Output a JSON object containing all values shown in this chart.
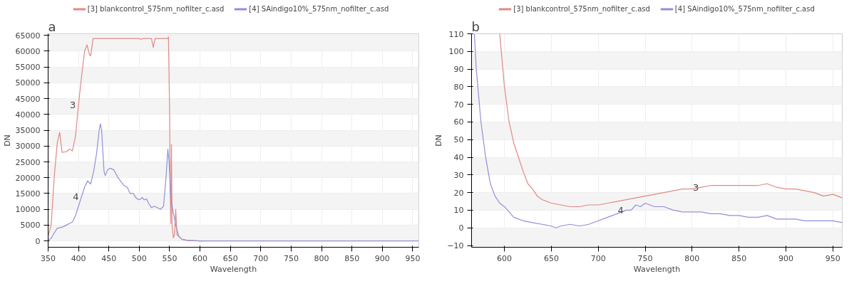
{
  "chart_data": [
    {
      "type": "line",
      "title": "a",
      "xlabel": "Wavelength",
      "ylabel": "DN",
      "xlim": [
        350,
        960
      ],
      "ylim": [
        -2000,
        65500
      ],
      "xticks": [
        350,
        400,
        450,
        500,
        550,
        600,
        650,
        700,
        750,
        800,
        850,
        900,
        950
      ],
      "yticks": [
        0,
        5000,
        10000,
        15000,
        20000,
        25000,
        30000,
        35000,
        40000,
        45000,
        50000,
        55000,
        60000,
        65000
      ],
      "grid": true,
      "legend": "top",
      "line_style": "solid",
      "series": [
        {
          "name": "[3] blankcontrol_575nm_nofilter_c.asd",
          "color": "#e08a84",
          "x": [
            350,
            355,
            360,
            365,
            369,
            373,
            380,
            385,
            390,
            395,
            400,
            405,
            410,
            414,
            418,
            420,
            424,
            500,
            502,
            505,
            520,
            523,
            526,
            547,
            548,
            550,
            551,
            552,
            553,
            554,
            556,
            558,
            560,
            562,
            570,
            580,
            600,
            608
          ],
          "values": [
            1500,
            5000,
            20000,
            31000,
            34300,
            28000,
            28200,
            29000,
            28500,
            33000,
            43000,
            52000,
            60000,
            62000,
            59000,
            58500,
            64000,
            64000,
            63700,
            64000,
            64000,
            61200,
            64000,
            64000,
            64500,
            40000,
            15000,
            5500,
            30500,
            5000,
            1000,
            2000,
            10000,
            2000,
            500,
            200,
            0,
            0
          ]
        },
        {
          "name": "[4] SAindigo10%_575nm_nofilter_c.asd",
          "color": "#9090d8",
          "x": [
            350,
            355,
            360,
            365,
            370,
            375,
            380,
            385,
            390,
            395,
            400,
            405,
            410,
            415,
            420,
            425,
            430,
            434,
            436,
            438,
            442,
            444,
            448,
            452,
            458,
            465,
            475,
            480,
            485,
            490,
            495,
            500,
            505,
            508,
            512,
            515,
            520,
            525,
            530,
            535,
            540,
            544,
            547,
            549,
            552,
            555,
            560,
            565,
            570,
            580,
            600,
            960
          ],
          "values": [
            300,
            800,
            2500,
            4000,
            4200,
            4500,
            5000,
            5500,
            6000,
            8000,
            11000,
            14000,
            17000,
            19000,
            18000,
            22000,
            28000,
            35000,
            37000,
            35000,
            22000,
            20700,
            22500,
            23000,
            22500,
            20000,
            17500,
            17000,
            15000,
            15000,
            13500,
            13000,
            13700,
            13000,
            13300,
            12000,
            10500,
            11000,
            10500,
            10000,
            11000,
            20000,
            29000,
            25000,
            14000,
            10000,
            5000,
            1500,
            500,
            100,
            0,
            0
          ]
        }
      ],
      "annotations": [
        {
          "text": "3",
          "x": 400,
          "y": 43000
        },
        {
          "text": "4",
          "x": 405,
          "y": 14000
        }
      ]
    },
    {
      "type": "line",
      "title": "b",
      "xlabel": "Wavelength",
      "ylabel": "DN",
      "xlim": [
        565,
        960
      ],
      "ylim": [
        -11,
        110
      ],
      "xticks": [
        600,
        650,
        700,
        750,
        800,
        850,
        900,
        950
      ],
      "yticks": [
        -10,
        0,
        10,
        20,
        30,
        40,
        50,
        60,
        70,
        80,
        90,
        100,
        110
      ],
      "grid": true,
      "legend": "top",
      "line_style": "solid",
      "series": [
        {
          "name": "[3] blankcontrol_575nm_nofilter_c.asd",
          "color": "#e08a84",
          "x": [
            595,
            600,
            605,
            610,
            615,
            620,
            625,
            630,
            635,
            640,
            650,
            660,
            670,
            680,
            690,
            700,
            710,
            720,
            730,
            740,
            750,
            760,
            770,
            780,
            790,
            800,
            810,
            820,
            830,
            840,
            850,
            860,
            870,
            880,
            890,
            900,
            910,
            920,
            930,
            940,
            950,
            960
          ],
          "values": [
            110,
            80,
            60,
            48,
            40,
            32,
            25,
            22,
            18,
            16,
            14,
            13,
            12,
            12,
            13,
            13,
            14,
            15,
            16,
            17,
            18,
            19,
            20,
            21,
            22,
            22,
            23,
            24,
            24,
            24,
            24,
            24,
            24,
            25,
            23,
            22,
            22,
            21,
            20,
            18,
            19,
            17
          ]
        },
        {
          "name": "[4] SAindigo10%_575nm_nofilter_c.asd",
          "color": "#9090d8",
          "x": [
            568,
            570,
            575,
            580,
            585,
            590,
            595,
            600,
            605,
            610,
            620,
            630,
            640,
            650,
            655,
            660,
            670,
            680,
            690,
            700,
            710,
            720,
            730,
            735,
            740,
            745,
            750,
            760,
            770,
            780,
            790,
            800,
            810,
            820,
            830,
            840,
            850,
            860,
            870,
            880,
            890,
            900,
            910,
            920,
            930,
            940,
            950,
            960
          ],
          "values": [
            110,
            90,
            60,
            40,
            25,
            18,
            14,
            12,
            9,
            6,
            4,
            3,
            2,
            1,
            0,
            1,
            2,
            1,
            2,
            4,
            6,
            8,
            10,
            10,
            13,
            12,
            14,
            12,
            12,
            10,
            9,
            9,
            9,
            8,
            8,
            7,
            7,
            6,
            6,
            7,
            5,
            5,
            5,
            4,
            4,
            4,
            4,
            3
          ]
        }
      ],
      "annotations": [
        {
          "text": "3",
          "x": 810,
          "y": 23
        },
        {
          "text": "4",
          "x": 730,
          "y": 10
        }
      ]
    }
  ]
}
